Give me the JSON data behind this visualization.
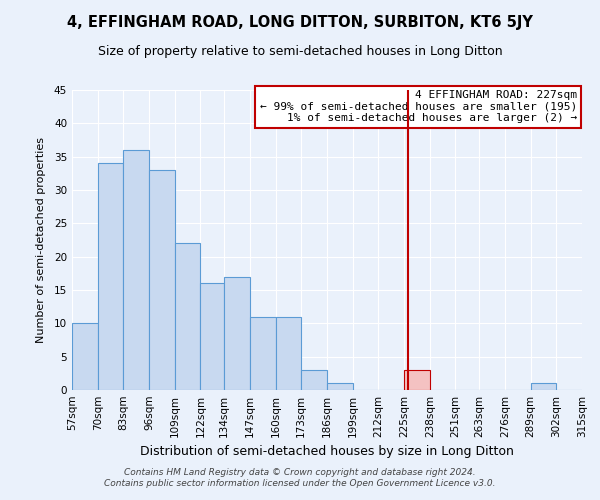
{
  "title": "4, EFFINGHAM ROAD, LONG DITTON, SURBITON, KT6 5JY",
  "subtitle": "Size of property relative to semi-detached houses in Long Ditton",
  "xlabel": "Distribution of semi-detached houses by size in Long Ditton",
  "ylabel": "Number of semi-detached properties",
  "bin_edges": [
    57,
    70,
    83,
    96,
    109,
    122,
    134,
    147,
    160,
    173,
    186,
    199,
    212,
    225,
    238,
    251,
    263,
    276,
    289,
    302,
    315
  ],
  "counts": [
    10,
    34,
    36,
    33,
    22,
    16,
    17,
    11,
    11,
    3,
    1,
    0,
    0,
    3,
    0,
    0,
    0,
    0,
    1,
    0
  ],
  "bar_color": "#c8d9f0",
  "bar_edge_color": "#5b9bd5",
  "highlight_bin_index": 13,
  "highlight_color": "#f4c2c2",
  "highlight_edge_color": "#c00000",
  "vline_x": 227,
  "vline_color": "#c00000",
  "ylim": [
    0,
    45
  ],
  "yticks": [
    0,
    5,
    10,
    15,
    20,
    25,
    30,
    35,
    40,
    45
  ],
  "tick_labels": [
    "57sqm",
    "70sqm",
    "83sqm",
    "96sqm",
    "109sqm",
    "122sqm",
    "134sqm",
    "147sqm",
    "160sqm",
    "173sqm",
    "186sqm",
    "199sqm",
    "212sqm",
    "225sqm",
    "238sqm",
    "251sqm",
    "263sqm",
    "276sqm",
    "289sqm",
    "302sqm",
    "315sqm"
  ],
  "annotation_title": "4 EFFINGHAM ROAD: 227sqm",
  "annotation_line1": "← 99% of semi-detached houses are smaller (195)",
  "annotation_line2": "1% of semi-detached houses are larger (2) →",
  "annotation_box_color": "#ffffff",
  "annotation_box_edge_color": "#c00000",
  "footer_line1": "Contains HM Land Registry data © Crown copyright and database right 2024.",
  "footer_line2": "Contains public sector information licensed under the Open Government Licence v3.0.",
  "background_color": "#eaf1fb",
  "title_fontsize": 10.5,
  "subtitle_fontsize": 9,
  "xlabel_fontsize": 9,
  "ylabel_fontsize": 8,
  "tick_fontsize": 7.5,
  "footer_fontsize": 6.5,
  "annotation_fontsize": 8
}
